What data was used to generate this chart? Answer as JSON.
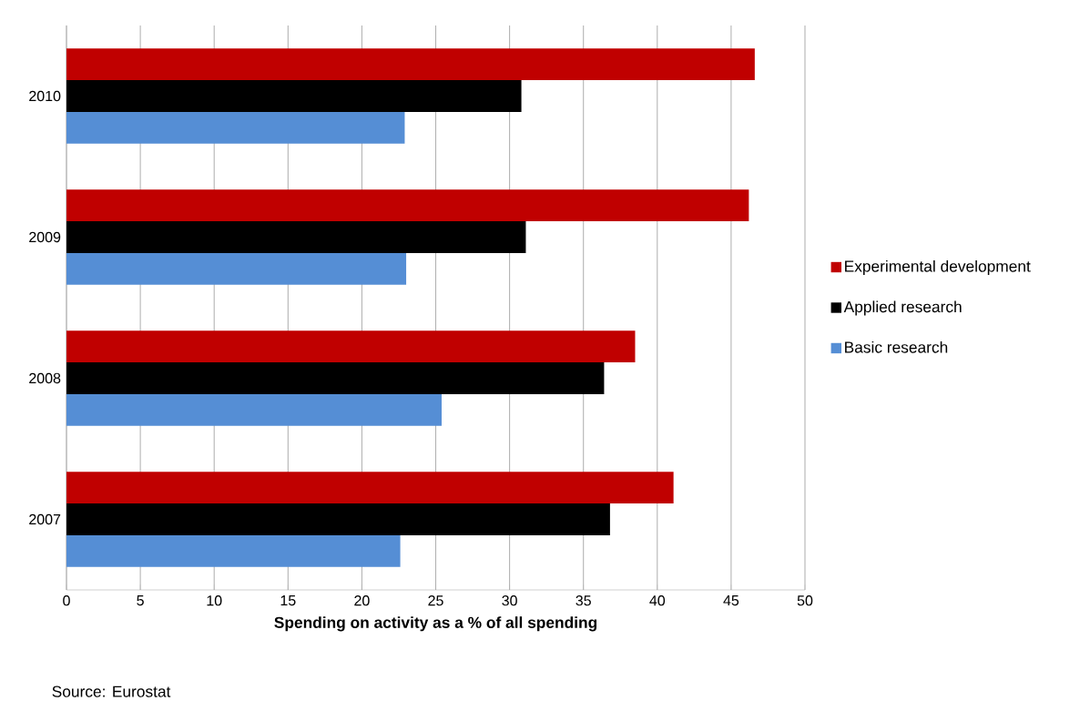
{
  "chart_data": {
    "type": "bar",
    "orientation": "horizontal",
    "categories": [
      "2010",
      "2009",
      "2008",
      "2007"
    ],
    "series": [
      {
        "name": "Experimental development",
        "color": "#c00000",
        "values": [
          46.6,
          46.2,
          38.5,
          41.1
        ]
      },
      {
        "name": "Applied research",
        "color": "#000000",
        "values": [
          30.8,
          31.1,
          36.4,
          36.8
        ]
      },
      {
        "name": "Basic research",
        "color": "#558ed5",
        "values": [
          22.9,
          23.0,
          25.4,
          22.6
        ]
      }
    ],
    "xlabel": "Spending on activity as a % of all spending",
    "xlim": [
      0,
      50
    ],
    "xticks": [
      0,
      5,
      10,
      15,
      20,
      25,
      30,
      35,
      40,
      45,
      50
    ],
    "grid": "x",
    "legend": "right",
    "annotations": [
      "Source: Eurostat"
    ]
  }
}
